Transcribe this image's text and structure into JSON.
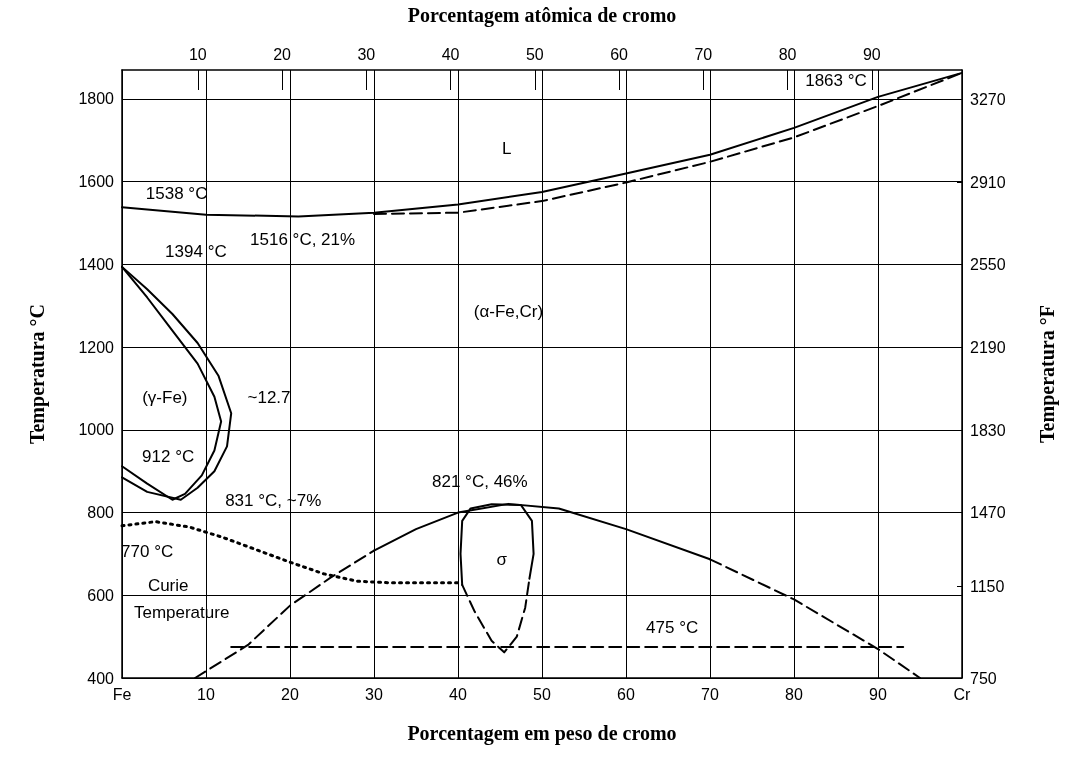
{
  "chart_data": {
    "type": "line",
    "xlabel": "Porcentagem em peso de cromo",
    "x2label": "Porcentagem atômica de cromo",
    "ylabel": "Temperatura °C",
    "y2label": "Temperatura °F",
    "xlim": [
      0,
      100
    ],
    "xticks": [
      {
        "value": 0,
        "label": "Fe"
      },
      10,
      20,
      30,
      40,
      50,
      60,
      70,
      80,
      {
        "value": 90,
        "label": "90"
      },
      {
        "value": 100,
        "label": "Cr"
      }
    ],
    "x2lim": [
      1,
      100.7
    ],
    "x2ticks": [
      10,
      20,
      30,
      40,
      50,
      60,
      70,
      80,
      90
    ],
    "ylim": [
      400,
      1870
    ],
    "yticks": [
      400,
      600,
      800,
      1000,
      1200,
      1400,
      1600,
      1800
    ],
    "y2lim": [
      750,
      3398
    ],
    "y2ticks": [
      750,
      1150,
      1470,
      1830,
      2190,
      2550,
      2910,
      3270
    ],
    "grid": true,
    "marker": "none",
    "series": [
      {
        "color": "#000000",
        "line_style": "solid",
        "x": [
          0,
          10,
          21,
          30,
          40,
          50,
          60,
          70,
          80,
          90,
          100
        ],
        "values": [
          1538,
          1520,
          1516,
          1525,
          1545,
          1575,
          1620,
          1665,
          1730,
          1805,
          1863
        ]
      },
      {
        "color": "#000000",
        "line_style": "dashed",
        "x": [
          30,
          40,
          50,
          60,
          70,
          80,
          90,
          100
        ],
        "values": [
          1522,
          1525,
          1553,
          1598,
          1648,
          1707,
          1783,
          1863
        ]
      },
      {
        "color": "#000000",
        "line_style": "solid",
        "x": [
          0,
          3,
          6,
          9,
          11,
          11.8,
          11,
          9.5,
          7.5,
          6,
          3,
          0
        ],
        "values": [
          1394,
          1320,
          1240,
          1160,
          1080,
          1020,
          950,
          890,
          845,
          831,
          870,
          912
        ]
      },
      {
        "color": "#000000",
        "line_style": "solid",
        "x": [
          0,
          3,
          6,
          9,
          11.5,
          13,
          12.5,
          11,
          9,
          7,
          3,
          0
        ],
        "values": [
          1394,
          1340,
          1280,
          1210,
          1130,
          1040,
          960,
          900,
          860,
          831,
          850,
          885
        ]
      },
      {
        "color": "#000000",
        "line_style": "dotted",
        "x": [
          0,
          4,
          8,
          12,
          16,
          20,
          24,
          28,
          32,
          40
        ],
        "values": [
          768,
          778,
          765,
          740,
          710,
          680,
          652,
          634,
          630,
          630
        ]
      },
      {
        "color": "#000000",
        "line_style": "dashed",
        "x": [
          8.7,
          15,
          20,
          25,
          30
        ],
        "values": [
          400,
          480,
          575,
          645,
          708
        ]
      },
      {
        "color": "#000000",
        "line_style": "solid",
        "x": [
          30,
          35,
          40,
          46,
          52,
          60,
          70
        ],
        "values": [
          708,
          760,
          800,
          821,
          810,
          760,
          687
        ]
      },
      {
        "color": "#000000",
        "line_style": "dashed",
        "x": [
          70,
          80,
          90,
          95
        ],
        "values": [
          687,
          590,
          470,
          400
        ]
      },
      {
        "color": "#000000",
        "line_style": "solid",
        "x": [
          40.5,
          40.3,
          40.5,
          41.5,
          44,
          47.5,
          48.8,
          49,
          48.5
        ],
        "values": [
          625,
          700,
          780,
          810,
          820,
          818,
          780,
          700,
          640
        ]
      },
      {
        "color": "#000000",
        "line_style": "dashed",
        "x": [
          40.5,
          42,
          44,
          45.5,
          47,
          48,
          48.5
        ],
        "values": [
          625,
          560,
          490,
          462,
          500,
          570,
          640
        ]
      },
      {
        "color": "#000000",
        "line_style": "dashed",
        "x": [
          13,
          93
        ],
        "values": [
          475,
          475
        ]
      }
    ],
    "annotations": [
      "L",
      "1538 °C",
      "1516 °C, 21%",
      "1394 °C",
      "(α-Fe,Cr)",
      "(γ-Fe)",
      "~12.7",
      "912 °C",
      "831 °C, ~7%",
      "770 °C",
      "821 °C, 46%",
      "σ",
      "Curie",
      "Temperature",
      "475 °C",
      "1863 °C"
    ]
  }
}
